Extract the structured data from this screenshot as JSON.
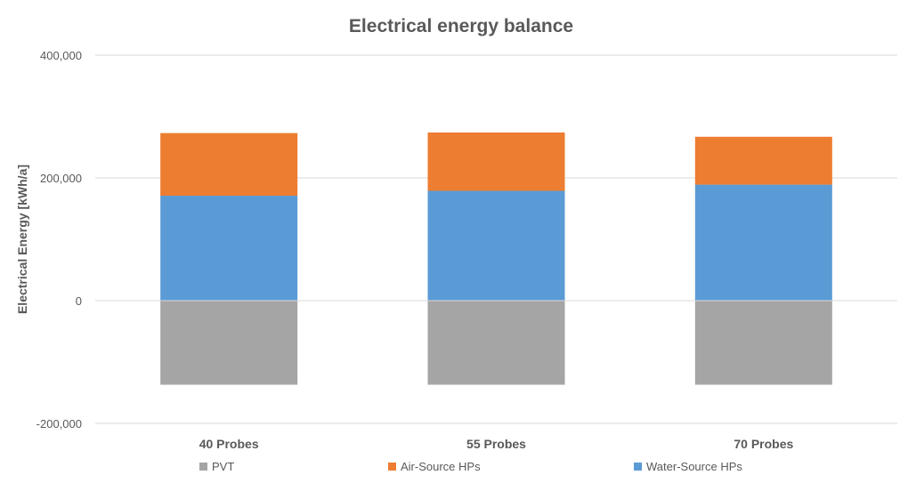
{
  "chart_data": {
    "type": "bar",
    "stacked": true,
    "title": "Electrical energy balance",
    "xlabel": "",
    "ylabel": "Electrical Energy [kWh/a]",
    "ylim": [
      -200000,
      400000
    ],
    "yticks": [
      400000,
      200000,
      0,
      -200000
    ],
    "ytick_labels": [
      "400,000",
      "200,000",
      "0",
      "-200,000"
    ],
    "grid": true,
    "legend_position": "bottom",
    "categories": [
      "40 Probes",
      "55 Probes",
      "70 Probes"
    ],
    "series": [
      {
        "name": "PVT",
        "color": "#a5a5a5",
        "values": [
          -137000,
          -137000,
          -137000
        ]
      },
      {
        "name": "Water-Source HPs",
        "color": "#5b9bd5",
        "values": [
          171000,
          179000,
          189000
        ]
      },
      {
        "name": "Air-Source HPs",
        "color": "#ed7d31",
        "values": [
          102000,
          95000,
          78000
        ]
      }
    ],
    "legend_order": [
      "PVT",
      "Air-Source HPs",
      "Water-Source HPs"
    ]
  }
}
